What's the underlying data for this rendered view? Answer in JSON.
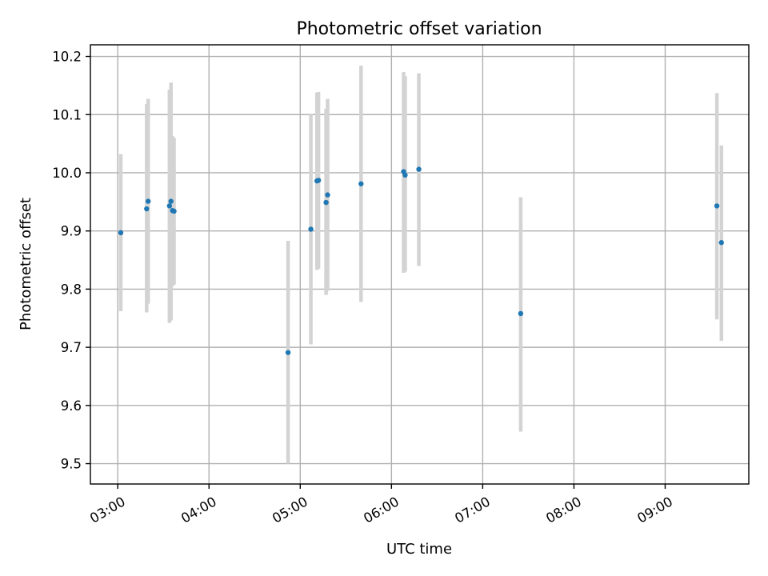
{
  "chart_data": {
    "type": "scatter",
    "title": "Photometric offset variation",
    "xlabel": "UTC time",
    "ylabel": "Photometric offset",
    "xlim": [
      "02:42",
      "09:55"
    ],
    "ylim": [
      9.465,
      10.22
    ],
    "xticks": [
      "03:00",
      "04:00",
      "05:00",
      "06:00",
      "07:00",
      "08:00",
      "09:00"
    ],
    "yticks": [
      "9.5",
      "9.6",
      "9.7",
      "9.8",
      "9.9",
      "10.0",
      "10.1",
      "10.2"
    ],
    "grid": true,
    "colors": {
      "point": "#1f77b4",
      "errorbar": "#d3d3d3"
    },
    "points": [
      {
        "x": "03:02",
        "y": 9.897,
        "ylow": 9.762,
        "yhigh": 10.032
      },
      {
        "x": "03:19",
        "y": 9.938,
        "ylow": 9.76,
        "yhigh": 10.118
      },
      {
        "x": "03:20",
        "y": 9.951,
        "ylow": 9.775,
        "yhigh": 10.127
      },
      {
        "x": "03:34",
        "y": 9.943,
        "ylow": 9.742,
        "yhigh": 10.143
      },
      {
        "x": "03:35",
        "y": 9.951,
        "ylow": 9.746,
        "yhigh": 10.155
      },
      {
        "x": "03:36",
        "y": 9.935,
        "ylow": 9.805,
        "yhigh": 10.063
      },
      {
        "x": "03:37",
        "y": 9.934,
        "ylow": 9.808,
        "yhigh": 10.06
      },
      {
        "x": "04:52",
        "y": 9.691,
        "ylow": 9.5,
        "yhigh": 9.883
      },
      {
        "x": "05:07",
        "y": 9.903,
        "ylow": 9.705,
        "yhigh": 10.1
      },
      {
        "x": "05:11",
        "y": 9.986,
        "ylow": 9.833,
        "yhigh": 10.138
      },
      {
        "x": "05:12",
        "y": 9.987,
        "ylow": 9.835,
        "yhigh": 10.139
      },
      {
        "x": "05:17",
        "y": 9.949,
        "ylow": 9.79,
        "yhigh": 10.11
      },
      {
        "x": "05:18",
        "y": 9.962,
        "ylow": 9.797,
        "yhigh": 10.127
      },
      {
        "x": "05:40",
        "y": 9.981,
        "ylow": 9.778,
        "yhigh": 10.184
      },
      {
        "x": "06:08",
        "y": 10.002,
        "ylow": 9.828,
        "yhigh": 10.173
      },
      {
        "x": "06:09",
        "y": 9.996,
        "ylow": 9.83,
        "yhigh": 10.166
      },
      {
        "x": "06:18",
        "y": 10.006,
        "ylow": 9.84,
        "yhigh": 10.171
      },
      {
        "x": "07:25",
        "y": 9.758,
        "ylow": 9.555,
        "yhigh": 9.958
      },
      {
        "x": "09:34",
        "y": 9.943,
        "ylow": 9.748,
        "yhigh": 10.137
      },
      {
        "x": "09:37",
        "y": 9.88,
        "ylow": 9.711,
        "yhigh": 10.047
      }
    ]
  }
}
